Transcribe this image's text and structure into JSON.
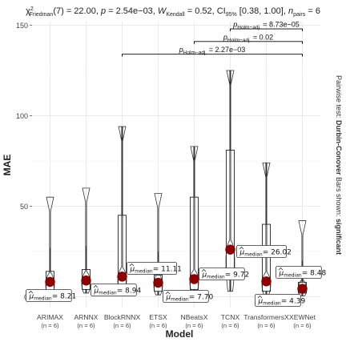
{
  "chart_data": {
    "type": "violin-box",
    "title_parts": {
      "stat": "χ",
      "stat_sup": "2",
      "stat_sub": "Friedman",
      "df": "(7) = 22.00, ",
      "p_label": "p",
      "p_value": " = 2.54e−03, ",
      "w_label": "W",
      "w_sub": "Kendall",
      "w_value": " = 0.52, CI",
      "ci_sub": "95%",
      "ci_value": " [0.38, 1.00], ",
      "n_label": "n",
      "n_sub": "pairs",
      "n_value": " = 6"
    },
    "xlabel": "Model",
    "ylabel": "MAE",
    "ylim": [
      -6,
      152
    ],
    "yticks": [
      0,
      50,
      100,
      150
    ],
    "caption_parts": {
      "prefix": "Pairwise test: ",
      "test": "Durbin-Conover",
      "middle": " Bars shown: ",
      "shown": "significant"
    },
    "median_symbol": "μ",
    "median_sub": "median",
    "categories": [
      "ARIMAX",
      "ARNNX",
      "BlockRNNX",
      "ETSX",
      "NBeatsX",
      "TCNX",
      "TransformersX",
      "XEWNet"
    ],
    "n_labels": [
      "(n = 6)",
      "(n = 6)",
      "(n = 6)",
      "(n = 6)",
      "(n = 6)",
      "(n = 6)",
      "(n = 6)",
      "(n = 6)"
    ],
    "medians": [
      8.21,
      8.94,
      11.11,
      7.7,
      9.72,
      26.02,
      8.48,
      4.39
    ],
    "median_labels": [
      "= 8.21",
      "= 8.94",
      "= 11.11",
      "= 7.70",
      "= 9.72",
      "= 26.02",
      "= 8.48",
      "= 4.39"
    ],
    "boxes": [
      {
        "min": 1.0,
        "q1": 3.0,
        "q3": 14.0,
        "max": 27.0,
        "violin_max": 55.0
      },
      {
        "min": 2.0,
        "q1": 4.0,
        "q3": 15.0,
        "max": 28.0,
        "violin_max": 60.0
      },
      {
        "min": 2.0,
        "q1": 5.0,
        "q3": 45.0,
        "max": 94.0,
        "violin_max": 94.0
      },
      {
        "min": 1.0,
        "q1": 3.0,
        "q3": 12.0,
        "max": 25.0,
        "violin_max": 57.0
      },
      {
        "min": 2.0,
        "q1": 4.0,
        "q3": 55.0,
        "max": 83.0,
        "violin_max": 83.0
      },
      {
        "min": 3.0,
        "q1": 10.0,
        "q3": 81.0,
        "max": 125.0,
        "violin_max": 125.0
      },
      {
        "min": 1.0,
        "q1": 3.0,
        "q3": 40.0,
        "max": 74.0,
        "violin_max": 74.0
      },
      {
        "min": 0.5,
        "q1": 2.0,
        "q3": 8.0,
        "max": 20.0,
        "violin_max": 42.0
      }
    ],
    "pairwise": [
      {
        "from": "BlockRNNX",
        "to": "XEWNet",
        "p_label": "p",
        "p_sub": "Holm−adj.",
        "p_value": " = 2.27e−03",
        "y": 134
      },
      {
        "from": "NBeatsX",
        "to": "XEWNet",
        "p_label": "p",
        "p_sub": "Holm−adj.",
        "p_value": " = 0.02",
        "y": 141
      },
      {
        "from": "TCNX",
        "to": "XEWNet",
        "p_label": "p",
        "p_sub": "Holm−adj.",
        "p_value": " = 8.73e−05",
        "y": 148
      }
    ],
    "colors": {
      "point": "#8b0000",
      "box_stroke": "#222222",
      "grid": "#e5e5e5",
      "text": "#222222"
    },
    "grid": true
  }
}
